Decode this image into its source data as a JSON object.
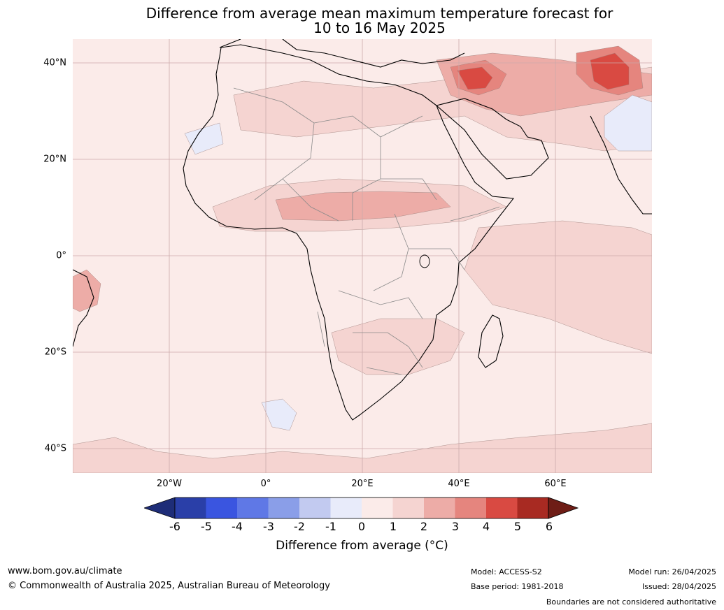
{
  "title_line1": "Difference from average mean maximum temperature forecast for",
  "title_line2": "10 to 16 May 2025",
  "lat_ticks": [
    {
      "label": "40°N",
      "lat": 40
    },
    {
      "label": "20°N",
      "lat": 20
    },
    {
      "label": "0°",
      "lat": 0
    },
    {
      "label": "20°S",
      "lat": -20
    },
    {
      "label": "40°S",
      "lat": -40
    }
  ],
  "lon_ticks": [
    {
      "label": "20°W",
      "lon": -20
    },
    {
      "label": "0°",
      "lon": 0
    },
    {
      "label": "20°E",
      "lon": 20
    },
    {
      "label": "40°E",
      "lon": 40
    },
    {
      "label": "60°E",
      "lon": 60
    }
  ],
  "extent": {
    "lon_min": -40,
    "lon_max": 80,
    "lat_min": -45,
    "lat_max": 45
  },
  "colorbar": {
    "label": "Difference from average (°C)",
    "ticks": [
      "-6",
      "-5",
      "-4",
      "-3",
      "-2",
      "-1",
      "0",
      "1",
      "2",
      "3",
      "4",
      "5",
      "6"
    ],
    "colors": [
      "#2a3fa8",
      "#3a55e0",
      "#5f78e6",
      "#8a9ee8",
      "#c2caf0",
      "#e8ebfa",
      "#fbebe9",
      "#f5d4d1",
      "#edaca7",
      "#e5857e",
      "#d94a42",
      "#a82a22"
    ],
    "under_color": "#1e2d78",
    "over_color": "#6e1d16"
  },
  "footer": {
    "website": "www.bom.gov.au/climate",
    "copyright": "© Commonwealth of Australia 2025, Australian Bureau of Meteorology",
    "model": "Model: ACCESS-S2",
    "base_period": "Base period: 1981-2018",
    "model_run": "Model run: 26/04/2025",
    "issued": "Issued: 28/04/2025",
    "disclaimer": "Boundaries are not considered authoritative"
  }
}
